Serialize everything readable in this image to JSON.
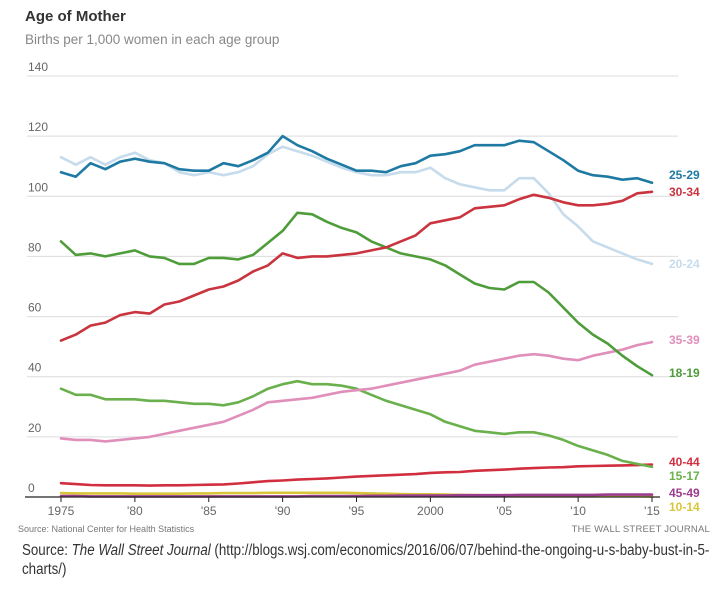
{
  "chart_data": {
    "type": "line",
    "title": "Age of Mother",
    "subtitle": "Births per 1,000 women in each age group",
    "xlabel": "",
    "ylabel": "",
    "ylim": [
      0,
      140
    ],
    "xlim": [
      1975,
      2015
    ],
    "yticks": [
      0,
      20,
      40,
      60,
      80,
      100,
      120,
      140
    ],
    "ytick_labels": [
      "0",
      "20",
      "40",
      "60",
      "80",
      "100",
      "120",
      "140"
    ],
    "xticks": [
      1975,
      1980,
      1985,
      1990,
      1995,
      2000,
      2005,
      2010,
      2015
    ],
    "xtick_labels": [
      "1975",
      "'80",
      "'85",
      "'90",
      "'95",
      "2000",
      "'05",
      "'10",
      "'15"
    ],
    "grid": true,
    "legend": "right (labels at line ends)",
    "x": [
      1975,
      1976,
      1977,
      1978,
      1979,
      1980,
      1981,
      1982,
      1983,
      1984,
      1985,
      1986,
      1987,
      1988,
      1989,
      1990,
      1991,
      1992,
      1993,
      1994,
      1995,
      1996,
      1997,
      1998,
      1999,
      2000,
      2001,
      2002,
      2003,
      2004,
      2005,
      2006,
      2007,
      2008,
      2009,
      2010,
      2011,
      2012,
      2013,
      2014,
      2015
    ],
    "series": [
      {
        "name": "25-29",
        "color": "#1f7aa3",
        "values": [
          108,
          106.5,
          111,
          109,
          111.5,
          112.5,
          111.5,
          111,
          109,
          108.5,
          108.5,
          111,
          110,
          112,
          114.5,
          120,
          117,
          115,
          112.5,
          110.5,
          108.5,
          108.5,
          108,
          110,
          111,
          113.5,
          114,
          115,
          117,
          117,
          117,
          118.5,
          118,
          115,
          112,
          108.5,
          107,
          106.5,
          105.5,
          106,
          104.5
        ]
      },
      {
        "name": "30-34",
        "color": "#c9343f",
        "values": [
          52,
          54,
          57,
          58,
          60.5,
          61.5,
          61,
          64,
          65,
          67,
          69,
          70,
          72,
          75,
          77,
          81,
          79.5,
          80,
          80,
          80.5,
          81,
          82,
          83,
          85,
          87,
          91,
          92,
          93,
          96,
          96.5,
          97,
          99,
          100.5,
          99.5,
          98,
          97,
          97,
          97.5,
          98.5,
          101,
          101.5
        ]
      },
      {
        "name": "20-24",
        "color": "#c6dcec",
        "values": [
          113,
          110.5,
          113,
          110.5,
          113,
          114.5,
          112,
          111,
          108,
          107,
          108,
          107,
          108,
          110,
          114,
          116.5,
          115,
          113.5,
          111.5,
          109.5,
          108,
          107,
          107,
          108,
          108,
          109.5,
          106,
          104,
          103,
          102,
          102,
          106,
          106,
          101,
          94,
          90,
          85,
          83,
          81,
          79,
          77.5
        ]
      },
      {
        "name": "35-39",
        "color": "#e08fbb",
        "values": [
          19.5,
          19,
          19,
          18.5,
          19,
          19.5,
          20,
          21,
          22,
          23,
          24,
          25,
          27,
          29,
          31.5,
          32,
          32.5,
          33,
          34,
          35,
          35.5,
          36,
          37,
          38,
          39,
          40,
          41,
          42,
          44,
          45,
          46,
          47,
          47.5,
          47,
          46,
          45.5,
          47,
          48,
          49,
          50.5,
          51.5
        ]
      },
      {
        "name": "18-19",
        "color": "#4f9d3a",
        "values": [
          85,
          80.5,
          81,
          80,
          81,
          82,
          80,
          79.5,
          77.5,
          77.5,
          79.5,
          79.5,
          79,
          80.5,
          84.5,
          88.5,
          94.5,
          94,
          91.5,
          89.5,
          88,
          85,
          83,
          81,
          80,
          79,
          77,
          74,
          71,
          69.5,
          69,
          71.5,
          71.5,
          68,
          63,
          58,
          54,
          51,
          47,
          43.5,
          40.5
        ]
      },
      {
        "name": "15-17",
        "color": "#6ab04c",
        "values": [
          36,
          34,
          34,
          32.5,
          32.5,
          32.5,
          32,
          32,
          31.5,
          31,
          31,
          30.5,
          31.5,
          33.5,
          36,
          37.5,
          38.5,
          37.5,
          37.5,
          37,
          36,
          34,
          32,
          30.5,
          29,
          27.5,
          25,
          23.5,
          22,
          21.5,
          21,
          21.5,
          21.5,
          20.5,
          19,
          17,
          15.5,
          14,
          12,
          11,
          10
        ]
      },
      {
        "name": "40-44",
        "color": "#d12f3f",
        "values": [
          4.6,
          4.3,
          4,
          3.9,
          3.9,
          3.9,
          3.8,
          3.9,
          3.9,
          4,
          4.1,
          4.2,
          4.5,
          4.9,
          5.3,
          5.5,
          5.8,
          6,
          6.2,
          6.5,
          6.8,
          7,
          7.2,
          7.4,
          7.6,
          8,
          8.2,
          8.3,
          8.7,
          8.9,
          9.1,
          9.4,
          9.6,
          9.8,
          9.9,
          10.2,
          10.3,
          10.4,
          10.5,
          10.6,
          10.8
        ]
      },
      {
        "name": "45-49",
        "color": "#9b3d8e",
        "values": [
          0.3,
          0.3,
          0.2,
          0.2,
          0.2,
          0.2,
          0.2,
          0.2,
          0.2,
          0.2,
          0.2,
          0.2,
          0.2,
          0.2,
          0.2,
          0.2,
          0.2,
          0.3,
          0.3,
          0.3,
          0.3,
          0.4,
          0.4,
          0.5,
          0.5,
          0.5,
          0.5,
          0.6,
          0.6,
          0.6,
          0.6,
          0.7,
          0.7,
          0.7,
          0.7,
          0.7,
          0.7,
          0.8,
          0.8,
          0.8,
          0.8
        ]
      },
      {
        "name": "10-14",
        "color": "#d8c63a",
        "values": [
          1.3,
          1.2,
          1.2,
          1.2,
          1.2,
          1.1,
          1.1,
          1.1,
          1.1,
          1.2,
          1.2,
          1.3,
          1.3,
          1.3,
          1.4,
          1.4,
          1.4,
          1.4,
          1.4,
          1.4,
          1.3,
          1.2,
          1.1,
          1,
          0.9,
          0.9,
          0.8,
          0.7,
          0.6,
          0.6,
          0.6,
          0.6,
          0.6,
          0.6,
          0.5,
          0.4,
          0.4,
          0.4,
          0.3,
          0.3,
          0.2
        ]
      }
    ],
    "label_order": [
      "25-29",
      "30-34",
      "20-24",
      "35-39",
      "18-19",
      "40-44",
      "15-17",
      "45-49",
      "10-14"
    ]
  },
  "footer": {
    "source_left": "Source: National Center for Health Statistics",
    "source_right": "THE WALL STREET JOURNAL"
  },
  "caption": {
    "prefix": "Source: ",
    "publication": "The Wall Street Journal",
    "url_text": " (http://blogs.wsj.com/economics/2016/06/07/behind-the-ongoing-u-s-baby-bust-in-5-charts/)"
  }
}
